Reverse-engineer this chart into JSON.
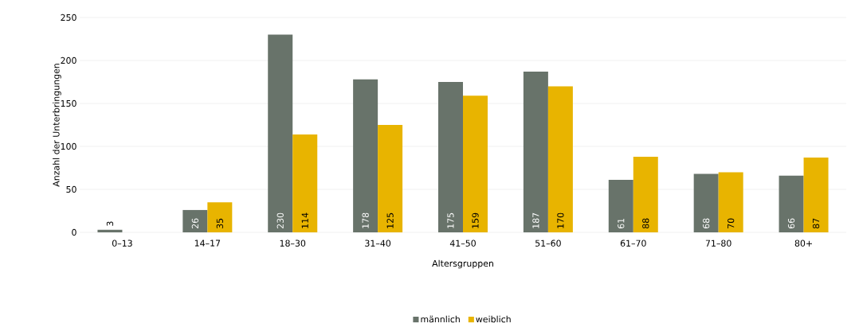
{
  "chart_data": {
    "type": "bar",
    "xlabel": "Altersgruppen",
    "ylabel": "Anzahl der Unterbringungen",
    "categories": [
      "0–13",
      "14–17",
      "18–30",
      "31–40",
      "41–50",
      "51–60",
      "61–70",
      "71–80",
      "80+"
    ],
    "series": [
      {
        "name": "männlich",
        "color": "#68736a",
        "values": [
          3,
          26,
          230,
          178,
          175,
          187,
          61,
          68,
          66
        ],
        "value_labels": [
          "3",
          "26",
          "230",
          "178",
          "175",
          "187",
          "61",
          "68",
          "66"
        ]
      },
      {
        "name": "weiblich",
        "color": "#e8b400",
        "values": [
          null,
          35,
          114,
          125,
          159,
          170,
          88,
          70,
          87
        ],
        "value_labels": [
          null,
          "35",
          "114",
          "125",
          "159",
          "170",
          "88",
          "70",
          "87"
        ]
      }
    ],
    "ylim": [
      0,
      250
    ],
    "yticks": [
      0,
      50,
      100,
      150,
      200,
      250
    ],
    "grid": "y",
    "legend": "bottom"
  }
}
